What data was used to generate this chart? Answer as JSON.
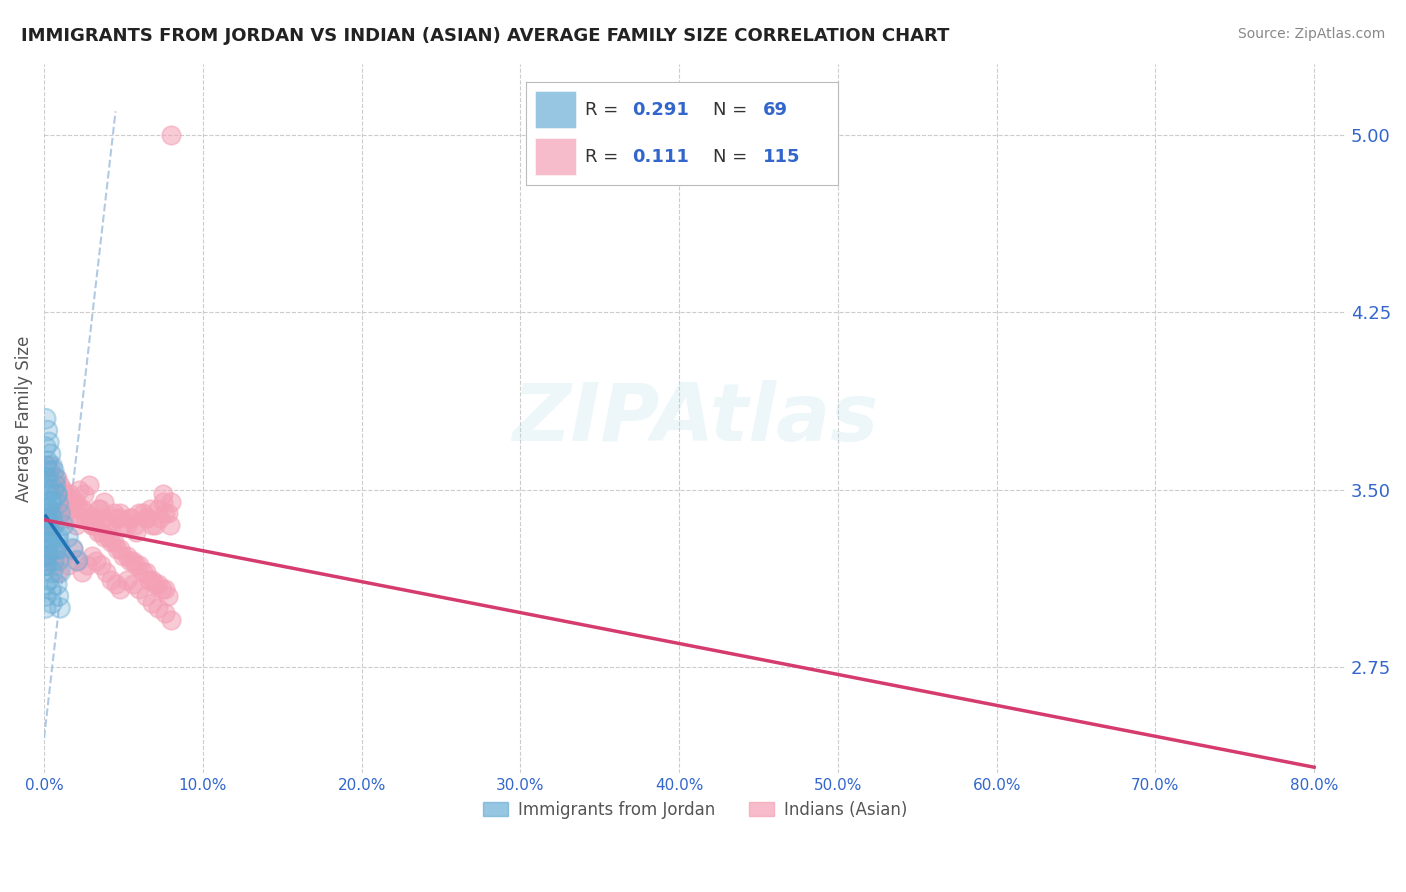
{
  "title": "IMMIGRANTS FROM JORDAN VS INDIAN (ASIAN) AVERAGE FAMILY SIZE CORRELATION CHART",
  "source": "Source: ZipAtlas.com",
  "ylabel": "Average Family Size",
  "yticks": [
    2.75,
    3.5,
    4.25,
    5.0
  ],
  "xticks": [
    0.0,
    0.1,
    0.2,
    0.3,
    0.4,
    0.5,
    0.6,
    0.7,
    0.8
  ],
  "xlim": [
    0.0,
    0.82
  ],
  "ylim": [
    2.3,
    5.3
  ],
  "jordan_color": "#6baed6",
  "jordan_trend_color": "#2171b5",
  "indian_color": "#f4a0b5",
  "indian_trend_color": "#d63b6e",
  "diag_color": "#aac4e0",
  "axis_label_color": "#3366cc",
  "background_color": "#ffffff",
  "grid_color": "#cccccc",
  "watermark": "ZIPAtlas",
  "legend_labels": [
    "Immigrants from Jordan",
    "Indians (Asian)"
  ],
  "R_jordan": "0.291",
  "N_jordan": "69",
  "R_indian": "0.111",
  "N_indian": "115",
  "title_fontsize": 13,
  "jordan_x": [
    0.001,
    0.002,
    0.003,
    0.004,
    0.005,
    0.006,
    0.007,
    0.008,
    0.009,
    0.01,
    0.001,
    0.002,
    0.003,
    0.004,
    0.005,
    0.006,
    0.007,
    0.008,
    0.009,
    0.01,
    0.001,
    0.002,
    0.003,
    0.004,
    0.005,
    0.006,
    0.007,
    0.008,
    0.009,
    0.01,
    0.001,
    0.002,
    0.003,
    0.004,
    0.005,
    0.001,
    0.002,
    0.003,
    0.004,
    0.005,
    0.001,
    0.002,
    0.003,
    0.004,
    0.005,
    0.001,
    0.002,
    0.003,
    0.001,
    0.002,
    0.003,
    0.001,
    0.002,
    0.001,
    0.002,
    0.001,
    0.001,
    0.001,
    0.001,
    0.001,
    0.006,
    0.007,
    0.008,
    0.009,
    0.01,
    0.012,
    0.015,
    0.018,
    0.021
  ],
  "jordan_y": [
    3.42,
    3.38,
    3.35,
    3.4,
    3.45,
    3.5,
    3.55,
    3.48,
    3.3,
    3.25,
    3.18,
    3.22,
    3.28,
    3.32,
    3.15,
    3.2,
    3.25,
    3.1,
    3.05,
    3.0,
    3.6,
    3.55,
    3.5,
    3.45,
    3.38,
    3.35,
    3.3,
    3.25,
    3.2,
    3.15,
    3.8,
    3.75,
    3.7,
    3.65,
    3.6,
    3.22,
    3.18,
    3.12,
    3.08,
    3.02,
    3.42,
    3.38,
    3.32,
    3.28,
    3.25,
    3.55,
    3.48,
    3.42,
    3.68,
    3.62,
    3.58,
    3.45,
    3.38,
    3.32,
    3.28,
    3.22,
    3.18,
    3.1,
    3.05,
    3.0,
    3.58,
    3.52,
    3.48,
    3.44,
    3.4,
    3.35,
    3.3,
    3.25,
    3.2
  ],
  "indian_x": [
    0.002,
    0.005,
    0.008,
    0.012,
    0.015,
    0.018,
    0.022,
    0.025,
    0.028,
    0.032,
    0.035,
    0.038,
    0.042,
    0.045,
    0.048,
    0.052,
    0.055,
    0.058,
    0.062,
    0.065,
    0.068,
    0.072,
    0.075,
    0.078,
    0.08,
    0.003,
    0.007,
    0.01,
    0.014,
    0.017,
    0.02,
    0.024,
    0.027,
    0.03,
    0.034,
    0.037,
    0.04,
    0.044,
    0.047,
    0.05,
    0.054,
    0.057,
    0.06,
    0.064,
    0.067,
    0.07,
    0.073,
    0.076,
    0.079,
    0.004,
    0.008,
    0.012,
    0.016,
    0.02,
    0.024,
    0.028,
    0.032,
    0.036,
    0.04,
    0.044,
    0.048,
    0.052,
    0.056,
    0.06,
    0.064,
    0.068,
    0.072,
    0.076,
    0.08,
    0.006,
    0.01,
    0.014,
    0.018,
    0.022,
    0.026,
    0.03,
    0.034,
    0.038,
    0.042,
    0.046,
    0.05,
    0.054,
    0.058,
    0.062,
    0.066,
    0.07,
    0.074,
    0.078,
    0.001,
    0.003,
    0.006,
    0.009,
    0.012,
    0.015,
    0.018,
    0.021,
    0.024,
    0.027,
    0.03,
    0.033,
    0.036,
    0.039,
    0.042,
    0.045,
    0.048,
    0.052,
    0.056,
    0.06,
    0.064,
    0.068,
    0.072,
    0.076,
    0.08,
    0.075
  ],
  "indian_y": [
    3.3,
    3.35,
    3.4,
    3.38,
    3.42,
    3.45,
    3.5,
    3.48,
    3.52,
    3.38,
    3.42,
    3.45,
    3.35,
    3.38,
    3.4,
    3.35,
    3.38,
    3.32,
    3.4,
    3.38,
    3.35,
    3.42,
    3.45,
    3.4,
    5.0,
    3.35,
    3.4,
    3.38,
    3.42,
    3.45,
    3.35,
    3.38,
    3.4,
    3.35,
    3.42,
    3.38,
    3.35,
    3.4,
    3.38,
    3.35,
    3.38,
    3.35,
    3.4,
    3.38,
    3.42,
    3.35,
    3.38,
    3.4,
    3.35,
    3.6,
    3.55,
    3.5,
    3.48,
    3.45,
    3.42,
    3.38,
    3.35,
    3.32,
    3.3,
    3.28,
    3.25,
    3.22,
    3.2,
    3.18,
    3.15,
    3.12,
    3.1,
    3.08,
    3.45,
    3.55,
    3.52,
    3.48,
    3.45,
    3.42,
    3.38,
    3.35,
    3.32,
    3.3,
    3.28,
    3.25,
    3.22,
    3.2,
    3.18,
    3.15,
    3.12,
    3.1,
    3.08,
    3.05,
    3.2,
    3.22,
    3.18,
    3.15,
    3.22,
    3.18,
    3.25,
    3.2,
    3.15,
    3.18,
    3.22,
    3.2,
    3.18,
    3.15,
    3.12,
    3.1,
    3.08,
    3.12,
    3.1,
    3.08,
    3.05,
    3.02,
    3.0,
    2.98,
    2.95,
    3.48
  ]
}
